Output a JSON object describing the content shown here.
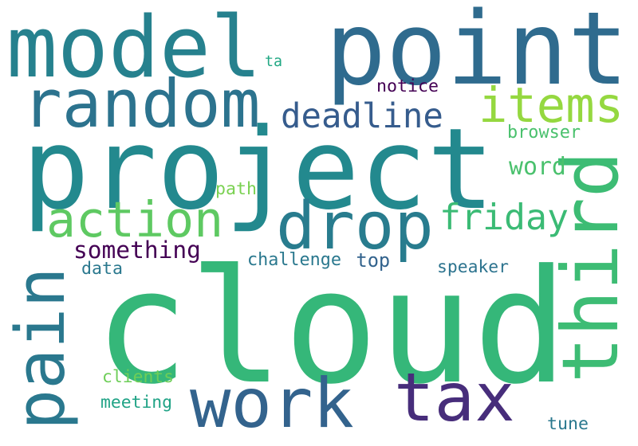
{
  "palette": {
    "background": "#ffffff",
    "viridis": [
      "#440154",
      "#46327e",
      "#365c8d",
      "#277f8e",
      "#1fa187",
      "#35b779",
      "#6ece58",
      "#addc30"
    ]
  },
  "words": [
    {
      "text": "cloud",
      "color": "#35b779"
    },
    {
      "text": "project",
      "color": "#23898e"
    },
    {
      "text": "point",
      "color": "#2f6b8e"
    },
    {
      "text": "model",
      "color": "#26818e"
    },
    {
      "text": "random",
      "color": "#2c738e"
    },
    {
      "text": "drop",
      "color": "#287c8e"
    },
    {
      "text": "third",
      "color": "#3dbc74"
    },
    {
      "text": "work",
      "color": "#33638d"
    },
    {
      "text": "tax",
      "color": "#472d7b"
    },
    {
      "text": "pain",
      "color": "#2a788e"
    },
    {
      "text": "action",
      "color": "#5ec962"
    },
    {
      "text": "items",
      "color": "#95d840"
    },
    {
      "text": "deadline",
      "color": "#365c8d"
    },
    {
      "text": "friday",
      "color": "#3bbb75"
    },
    {
      "text": "something",
      "color": "#440154"
    },
    {
      "text": "word",
      "color": "#4ac16d"
    },
    {
      "text": "browser",
      "color": "#4ac16d"
    },
    {
      "text": "notice",
      "color": "#440154"
    },
    {
      "text": "path",
      "color": "#7ad151"
    },
    {
      "text": "challenge",
      "color": "#2a788e"
    },
    {
      "text": "top",
      "color": "#33638d"
    },
    {
      "text": "speaker",
      "color": "#2c738e"
    },
    {
      "text": "data",
      "color": "#2a788e"
    },
    {
      "text": "clients",
      "color": "#6ece58"
    },
    {
      "text": "meeting",
      "color": "#20a386"
    },
    {
      "text": "tune",
      "color": "#2a788e"
    },
    {
      "text": "ta",
      "color": "#22a884"
    }
  ]
}
